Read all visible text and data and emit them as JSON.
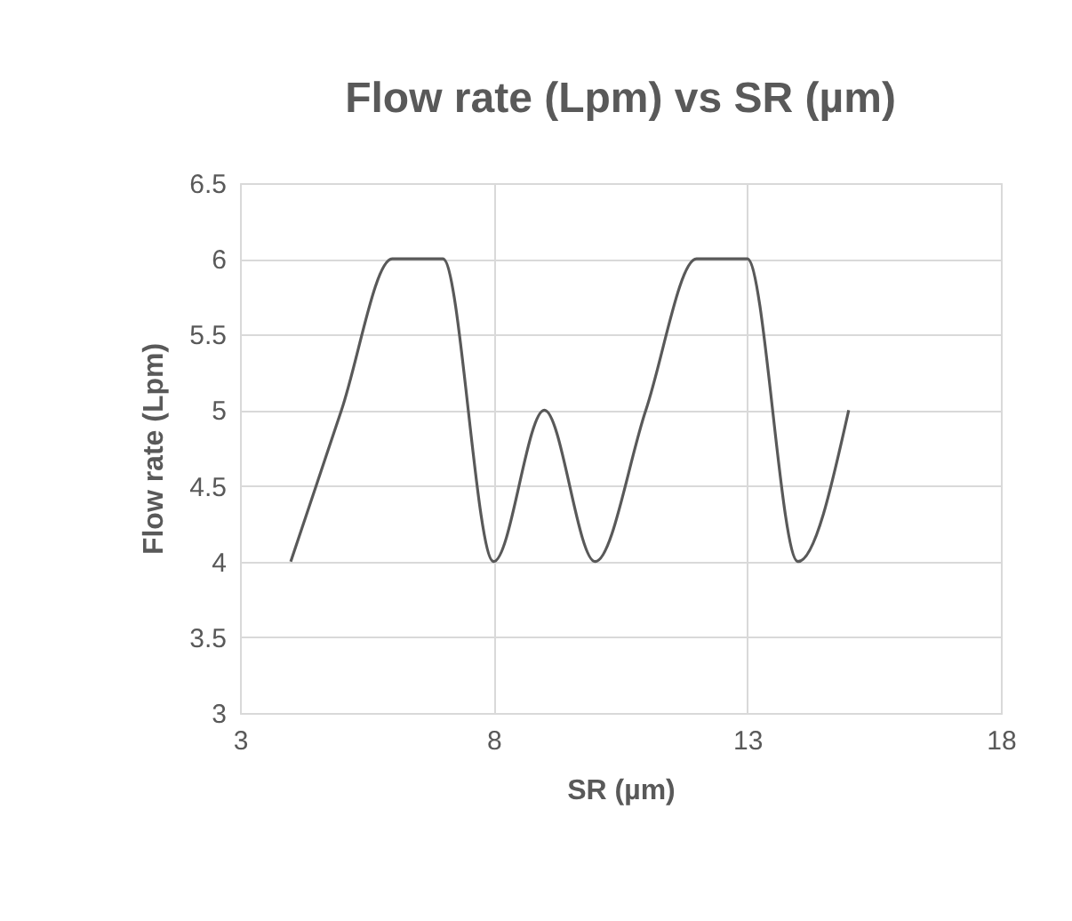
{
  "chart_data": {
    "type": "line",
    "title": "Flow rate (Lpm)   vs SR (µm)",
    "xlabel": "SR (µm)",
    "ylabel": "Flow rate (Lpm)",
    "x": [
      4,
      5,
      6,
      7,
      8,
      9,
      10,
      11,
      12,
      13,
      14,
      15
    ],
    "series": [
      {
        "color": "#595959",
        "values": [
          4,
          5,
          6,
          6,
          4,
          5,
          4,
          5,
          6,
          6,
          4,
          5
        ]
      }
    ],
    "xlim": [
      3,
      18
    ],
    "xticks": [
      3,
      8,
      13,
      18
    ],
    "ylim": [
      3,
      6.5
    ],
    "yticks": [
      3,
      3.5,
      4,
      4.5,
      5,
      5.5,
      6,
      6.5
    ],
    "grid": true,
    "marker": "none",
    "line_style": "solid"
  }
}
